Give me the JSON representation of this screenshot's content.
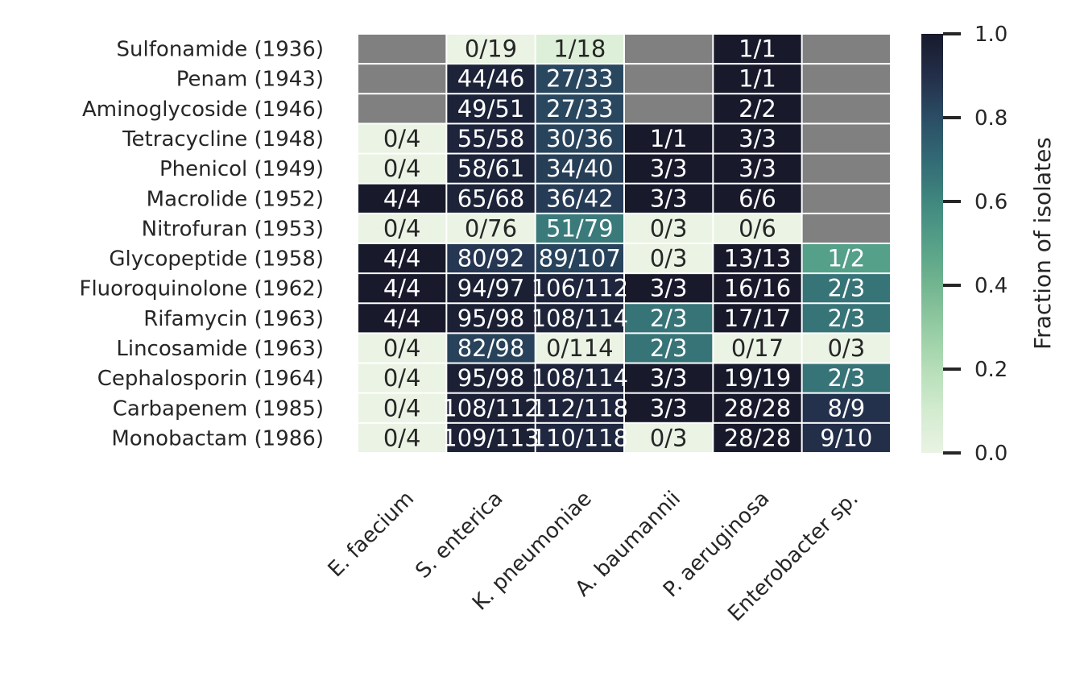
{
  "chart_data": {
    "type": "heatmap",
    "title": "",
    "xlabel": "",
    "ylabel": "",
    "rows": [
      "Sulfonamide (1936)",
      "Penam (1943)",
      "Aminoglycoside (1946)",
      "Tetracycline (1948)",
      "Phenicol (1949)",
      "Macrolide (1952)",
      "Nitrofuran (1953)",
      "Glycopeptide (1958)",
      "Fluoroquinolone (1962)",
      "Rifamycin (1963)",
      "Lincosamide (1963)",
      "Cephalosporin (1964)",
      "Carbapenem (1985)",
      "Monobactam (1986)"
    ],
    "columns": [
      "E. faecium",
      "S. enterica",
      "K. pneumoniae",
      "A. baumannii",
      "P. aeruginosa",
      "Enterobacter sp."
    ],
    "cells": [
      [
        null,
        "0/19",
        "1/18",
        null,
        "1/1",
        null
      ],
      [
        null,
        "44/46",
        "27/33",
        null,
        "1/1",
        null
      ],
      [
        null,
        "49/51",
        "27/33",
        null,
        "2/2",
        null
      ],
      [
        "0/4",
        "55/58",
        "30/36",
        "1/1",
        "3/3",
        null
      ],
      [
        "0/4",
        "58/61",
        "34/40",
        "3/3",
        "3/3",
        null
      ],
      [
        "4/4",
        "65/68",
        "36/42",
        "3/3",
        "6/6",
        null
      ],
      [
        "0/4",
        "0/76",
        "51/79",
        "0/3",
        "0/6",
        null
      ],
      [
        "4/4",
        "80/92",
        "89/107",
        "0/3",
        "13/13",
        "1/2"
      ],
      [
        "4/4",
        "94/97",
        "106/112",
        "3/3",
        "16/16",
        "2/3"
      ],
      [
        "4/4",
        "95/98",
        "108/114",
        "2/3",
        "17/17",
        "2/3"
      ],
      [
        "0/4",
        "82/98",
        "0/114",
        "2/3",
        "0/17",
        "0/3"
      ],
      [
        "0/4",
        "95/98",
        "108/114",
        "3/3",
        "19/19",
        "2/3"
      ],
      [
        "0/4",
        "108/112",
        "112/118",
        "3/3",
        "28/28",
        "8/9"
      ],
      [
        "0/4",
        "109/113",
        "110/118",
        "0/3",
        "28/28",
        "9/10"
      ]
    ],
    "colorbar": {
      "label": "Fraction of isolates",
      "range": [
        0.0,
        1.0
      ],
      "ticks": [
        "0.0",
        "0.2",
        "0.4",
        "0.6",
        "0.8",
        "1.0"
      ]
    },
    "colors": {
      "missing": "#808080",
      "low": "#eaf3e4",
      "high": "#181a2c",
      "text_dark": "#262626",
      "text_light": "#ffffff"
    }
  }
}
